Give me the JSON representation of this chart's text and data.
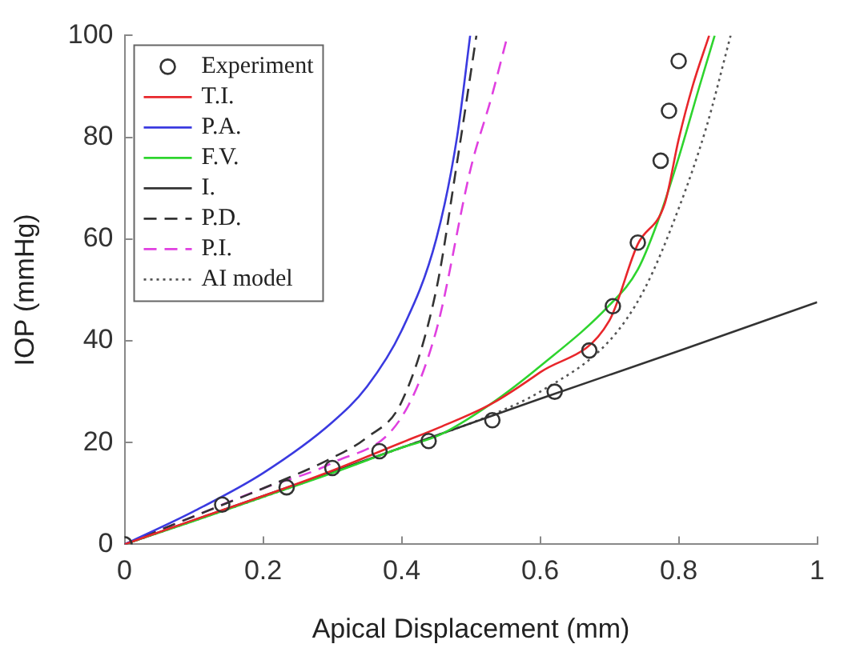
{
  "chart_data": {
    "type": "line",
    "xlabel": "Apical Displacement (mm)",
    "ylabel": "IOP (mmHg)",
    "xlim": [
      0,
      1
    ],
    "ylim": [
      0,
      100
    ],
    "xticks": [
      0,
      0.2,
      0.4,
      0.6,
      0.8,
      1
    ],
    "yticks": [
      0,
      20,
      40,
      60,
      80,
      100
    ],
    "grid": false,
    "legend": "top left",
    "series": [
      {
        "name": "Experiment",
        "type": "scatter",
        "marker": "circle",
        "color": "#333333",
        "x": [
          0,
          0.141,
          0.234,
          0.3,
          0.368,
          0.439,
          0.531,
          0.621,
          0.671,
          0.705,
          0.741,
          0.774,
          0.786,
          0.8
        ],
        "values": [
          0,
          7.8,
          11.2,
          15,
          18.3,
          20.3,
          24.4,
          30,
          38.1,
          46.8,
          59.3,
          75.4,
          85.2,
          95
        ]
      },
      {
        "name": "T.I.",
        "color": "#e8262b",
        "line_style": "solid",
        "x": [
          0,
          0.1,
          0.2,
          0.3,
          0.4,
          0.455,
          0.531,
          0.6,
          0.7,
          0.741,
          0.78,
          0.8,
          0.82,
          0.844
        ],
        "values": [
          0,
          4.8,
          9.5,
          14.5,
          20,
          23,
          27.7,
          33.8,
          44,
          59,
          67,
          79.6,
          90,
          100
        ]
      },
      {
        "name": "P.A.",
        "color": "#3a3ae0",
        "line_style": "solid",
        "x": [
          0,
          0.1,
          0.2,
          0.3,
          0.35,
          0.4,
          0.45,
          0.48,
          0.499
        ],
        "values": [
          0,
          6.5,
          14,
          24,
          31,
          42,
          60,
          80,
          100
        ]
      },
      {
        "name": "F.V.",
        "color": "#2ed42e",
        "line_style": "solid",
        "x": [
          0,
          0.1,
          0.2,
          0.3,
          0.4,
          0.455,
          0.531,
          0.6,
          0.7,
          0.741,
          0.774,
          0.8,
          0.83,
          0.852
        ],
        "values": [
          0,
          4.6,
          9.3,
          14,
          19,
          21.5,
          27.8,
          35,
          47,
          54,
          65,
          76,
          90,
          100
        ]
      },
      {
        "name": "I.",
        "color": "#333333",
        "line_style": "solid",
        "x": [
          0,
          0.2,
          0.4,
          0.6,
          0.8,
          1
        ],
        "values": [
          0,
          9.5,
          19,
          28.6,
          38,
          47.6
        ]
      },
      {
        "name": "P.D.",
        "color": "#333333",
        "line_style": "dashed",
        "x": [
          0,
          0.1,
          0.2,
          0.3,
          0.35,
          0.4,
          0.45,
          0.48,
          0.508
        ],
        "values": [
          0,
          5.5,
          11,
          17,
          21,
          28,
          50,
          75,
          100
        ]
      },
      {
        "name": "P.I.",
        "color": "#e040e0",
        "line_style": "dashed",
        "x": [
          0,
          0.1,
          0.2,
          0.3,
          0.4,
          0.45,
          0.5,
          0.53,
          0.553
        ],
        "values": [
          0,
          5.5,
          11,
          16,
          25,
          42,
          74,
          88,
          100
        ]
      },
      {
        "name": "AI model",
        "color": "#555555",
        "line_style": "dotted",
        "x": [
          0,
          0.2,
          0.4,
          0.531,
          0.6,
          0.7,
          0.75,
          0.8,
          0.84,
          0.875
        ],
        "values": [
          0,
          9.3,
          19,
          25.5,
          30,
          40,
          50,
          66,
          82,
          100
        ]
      }
    ]
  }
}
